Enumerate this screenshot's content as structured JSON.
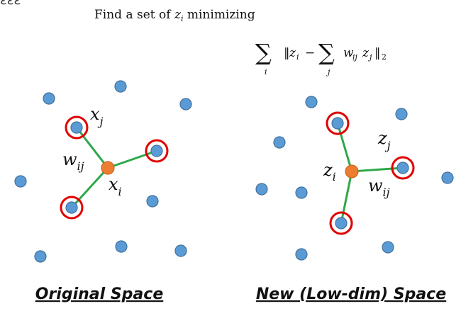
{
  "header": {
    "corner_mark": "ɛɛɛ",
    "instruction_prefix": "Find a set of ",
    "instruction_var": "z",
    "instruction_sub": "i",
    "instruction_suffix": " minimizing"
  },
  "formula": {
    "sum_symbol": "∑",
    "outer_index": "i",
    "inner_index": "j",
    "norm_open": "‖",
    "z": "z",
    "z_sub": "i",
    "minus": "−",
    "w": "w",
    "w_sub": "ij",
    "z2": "z",
    "z2_sub": "j",
    "norm_close": "‖",
    "norm_sub": "2"
  },
  "left_panel": {
    "title": "Original Space",
    "labels": {
      "xj": {
        "main": "x",
        "sub": "j"
      },
      "xi": {
        "main": "x",
        "sub": "i"
      },
      "wij": {
        "main": "w",
        "sub": "ij"
      }
    }
  },
  "right_panel": {
    "title": "New (Low-dim) Space",
    "labels": {
      "zj": {
        "main": "z",
        "sub": "j"
      },
      "zi": {
        "main": "z",
        "sub": "i"
      },
      "wij": {
        "main": "w",
        "sub": "ij"
      }
    }
  },
  "colors": {
    "point": "#5b9bd5",
    "center": "#ed7d31",
    "neighbor_ring": "#e00000",
    "edge": "#2ea84a"
  }
}
